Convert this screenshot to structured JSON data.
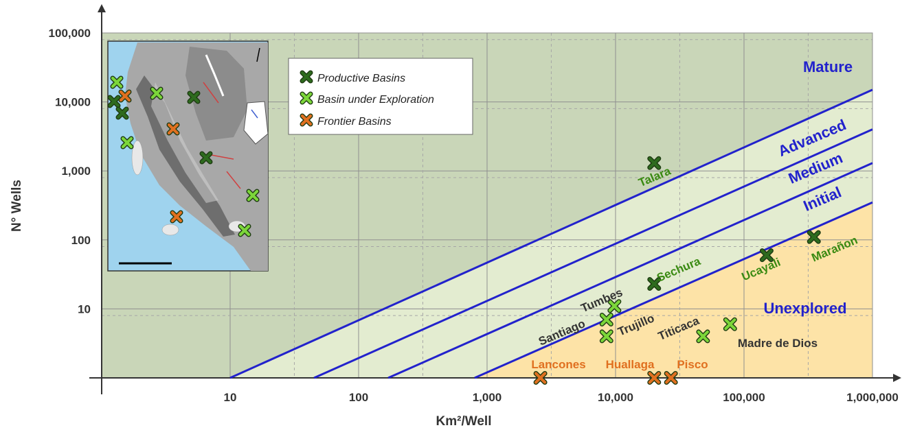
{
  "colors": {
    "plot_bg": "#c9d6b8",
    "band_fill": "#e3ecd0",
    "unexplored_fill": "#fde3a7",
    "line": "#2222cc",
    "productive": "#2e6b1e",
    "exploration": "#7cd63a",
    "frontier": "#e07020"
  },
  "chart_data": {
    "type": "scatter",
    "xlabel": "Km²/Well",
    "ylabel": "N° Wells",
    "xscale": "log",
    "yscale": "log",
    "xlim": [
      1,
      1000000
    ],
    "ylim": [
      1,
      100000
    ],
    "x_ticks": [
      "10",
      "100",
      "1,000",
      "10,000",
      "100,000",
      "1,000,000"
    ],
    "y_ticks": [
      "10",
      "100",
      "1,000",
      "10,000",
      "100,000"
    ],
    "grid": true,
    "legend_position": "top-left",
    "legend": [
      {
        "name": "Productive Basins",
        "color": "#2e6b1e"
      },
      {
        "name": "Basin under Exploration",
        "color": "#7cd63a"
      },
      {
        "name": "Frontier Basins",
        "color": "#e07020"
      }
    ],
    "zones": [
      "Mature",
      "Advanced",
      "Medium",
      "Initial",
      "Unexplored"
    ],
    "boundary_lines": [
      {
        "x": [
          10,
          1000000
        ],
        "y": [
          1,
          15000
        ]
      },
      {
        "x": [
          45,
          1000000
        ],
        "y": [
          1,
          4000
        ]
      },
      {
        "x": [
          170,
          1000000
        ],
        "y": [
          1,
          1300
        ]
      },
      {
        "x": [
          800,
          1000000
        ],
        "y": [
          1,
          350
        ]
      }
    ],
    "series": [
      {
        "name": "Productive Basins",
        "points": [
          {
            "label": "Talara",
            "x": 20000,
            "y": 1300
          },
          {
            "label": "Sechura",
            "x": 20000,
            "y": 23
          },
          {
            "label": "Ucayali",
            "x": 150000,
            "y": 60
          },
          {
            "label": "Marañon",
            "x": 350000,
            "y": 110
          }
        ]
      },
      {
        "name": "Basin under Exploration",
        "points": [
          {
            "label": "Tumbes",
            "x": 9800,
            "y": 11
          },
          {
            "label": "Santiago",
            "x": 8500,
            "y": 7
          },
          {
            "label": "Trujillo",
            "x": 8500,
            "y": 4
          },
          {
            "label": "Titicaca",
            "x": 48000,
            "y": 4
          },
          {
            "label": "Madre de Dios",
            "x": 78000,
            "y": 6
          }
        ]
      },
      {
        "name": "Frontier Basins",
        "points": [
          {
            "label": "Lancones",
            "x": 2600,
            "y": 1
          },
          {
            "label": "Huallaga",
            "x": 20000,
            "y": 1
          },
          {
            "label": "Pisco",
            "x": 27000,
            "y": 1
          }
        ]
      }
    ]
  }
}
